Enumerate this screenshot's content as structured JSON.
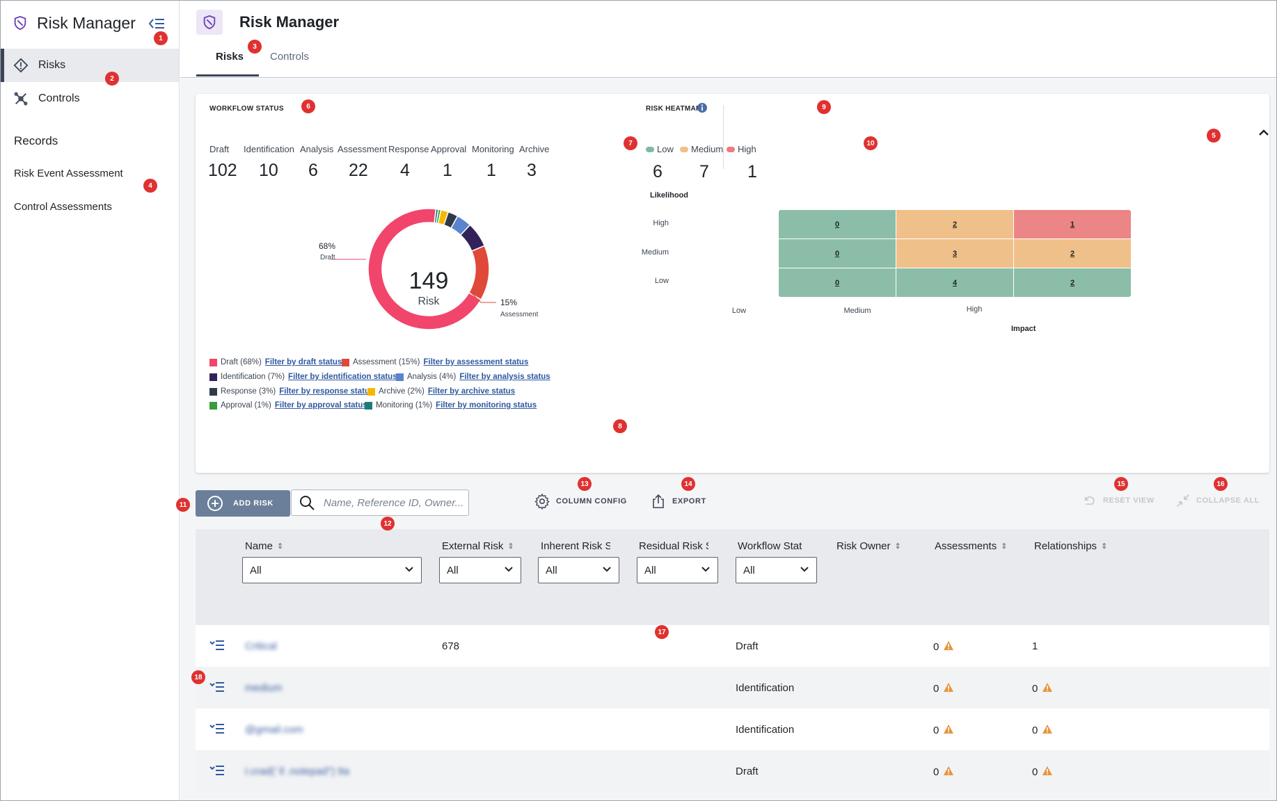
{
  "sidebar": {
    "app_title": "Risk Manager",
    "items": [
      {
        "label": "Risks"
      },
      {
        "label": "Controls"
      }
    ],
    "section_title": "Records",
    "records": [
      {
        "label": "Risk Event Assessment"
      },
      {
        "label": "Control Assessments"
      }
    ]
  },
  "header": {
    "title": "Risk Manager",
    "tabs": [
      {
        "label": "Risks",
        "active": true
      },
      {
        "label": "Controls",
        "active": false
      }
    ]
  },
  "workflow": {
    "title": "WORKFLOW STATUS",
    "stats": [
      {
        "label": "Draft",
        "value": "102"
      },
      {
        "label": "Identification",
        "value": "10"
      },
      {
        "label": "Analysis",
        "value": "6"
      },
      {
        "label": "Assessment",
        "value": "22"
      },
      {
        "label": "Response",
        "value": "4"
      },
      {
        "label": "Approval",
        "value": "1"
      },
      {
        "label": "Monitoring",
        "value": "1"
      },
      {
        "label": "Archive",
        "value": "3"
      }
    ],
    "donut_total": "149",
    "donut_label": "Risk",
    "callouts": [
      {
        "pct": "68%",
        "label": "Draft"
      },
      {
        "pct": "15%",
        "label": "Assessment"
      }
    ],
    "legend": [
      {
        "label": "Draft (68%)",
        "link": "Filter by draft status",
        "color": "#f2456b"
      },
      {
        "label": "Assessment (15%)",
        "link": "Filter by assessment status",
        "color": "#e0483a"
      },
      {
        "label": "Identification (7%)",
        "link": "Filter by identification status",
        "color": "#33225a"
      },
      {
        "label": "Analysis (4%)",
        "link": "Filter by analysis status",
        "color": "#5b84d0"
      },
      {
        "label": "Response (3%)",
        "link": "Filter by response status",
        "color": "#2f3a48"
      },
      {
        "label": "Archive (2%)",
        "link": "Filter by archive status",
        "color": "#f5b800"
      },
      {
        "label": "Approval (1%)",
        "link": "Filter by approval status",
        "color": "#3a9b3a"
      },
      {
        "label": "Monitoring (1%)",
        "link": "Filter by monitoring status",
        "color": "#1e7b7b"
      }
    ]
  },
  "chart_data": {
    "type": "pie",
    "categories": [
      "Draft",
      "Assessment",
      "Identification",
      "Analysis",
      "Response",
      "Archive",
      "Approval",
      "Monitoring"
    ],
    "values": [
      102,
      22,
      10,
      6,
      4,
      3,
      1,
      1
    ],
    "colors": [
      "#f2456b",
      "#e0483a",
      "#33225a",
      "#5b84d0",
      "#2f3a48",
      "#f5b800",
      "#3a9b3a",
      "#1e7b7b"
    ],
    "title": "",
    "donut": true
  },
  "heatmap": {
    "title": "RISK HEATMAP",
    "legend": [
      {
        "label": "Low",
        "value": "6",
        "color": "#7fb9a2"
      },
      {
        "label": "Medium",
        "value": "7",
        "color": "#f0c08a"
      },
      {
        "label": "High",
        "value": "1",
        "color": "#ec7c7c"
      }
    ],
    "y_title": "Likelihood",
    "x_title": "Impact",
    "rows": [
      "High",
      "Medium",
      "Low"
    ],
    "cols": [
      "Low",
      "Medium",
      "High"
    ],
    "cells": [
      [
        {
          "v": "0",
          "c": "#8cbda8"
        },
        {
          "v": "2",
          "c": "#f0c08a"
        },
        {
          "v": "1",
          "c": "#ec8585"
        }
      ],
      [
        {
          "v": "0",
          "c": "#8cbda8"
        },
        {
          "v": "3",
          "c": "#f0c08a"
        },
        {
          "v": "2",
          "c": "#f0c08a"
        }
      ],
      [
        {
          "v": "0",
          "c": "#8cbda8"
        },
        {
          "v": "4",
          "c": "#8cbda8"
        },
        {
          "v": "2",
          "c": "#8cbda8"
        }
      ]
    ]
  },
  "toolbar": {
    "add_label": "ADD RISK",
    "search_placeholder": "Name, Reference ID, Owner...",
    "column_config": "COLUMN CONFIG",
    "export": "EXPORT",
    "reset_view": "RESET VIEW",
    "collapse_all": "COLLAPSE ALL"
  },
  "table": {
    "columns": [
      {
        "label": "Name",
        "filter": "All"
      },
      {
        "label": "External Risk",
        "filter": "All"
      },
      {
        "label": "Inherent Risk S",
        "filter": "All"
      },
      {
        "label": "Residual Risk S",
        "filter": "All"
      },
      {
        "label": "Workflow Stat",
        "filter": "All"
      },
      {
        "label": "Risk Owner"
      },
      {
        "label": "Assessments"
      },
      {
        "label": "Relationships"
      }
    ],
    "rows": [
      {
        "name": "Critical",
        "external": "678",
        "workflow": "Draft",
        "assessments": "0",
        "relationships": "1",
        "rel_warn": false
      },
      {
        "name": "medium",
        "external": "",
        "workflow": "Identification",
        "assessments": "0",
        "relationships": "0",
        "rel_warn": true
      },
      {
        "name": "@gmail.com",
        "external": "",
        "workflow": "Identification",
        "assessments": "0",
        "relationships": "0",
        "rel_warn": true
      },
      {
        "name": "I.crad(' ll .notepad\") 9a",
        "external": "",
        "workflow": "Draft",
        "assessments": "0",
        "relationships": "0",
        "rel_warn": true
      }
    ]
  },
  "markers": [
    "1",
    "2",
    "3",
    "4",
    "5",
    "6",
    "7",
    "8",
    "9",
    "10",
    "11",
    "12",
    "13",
    "14",
    "15",
    "16",
    "17",
    "18"
  ]
}
